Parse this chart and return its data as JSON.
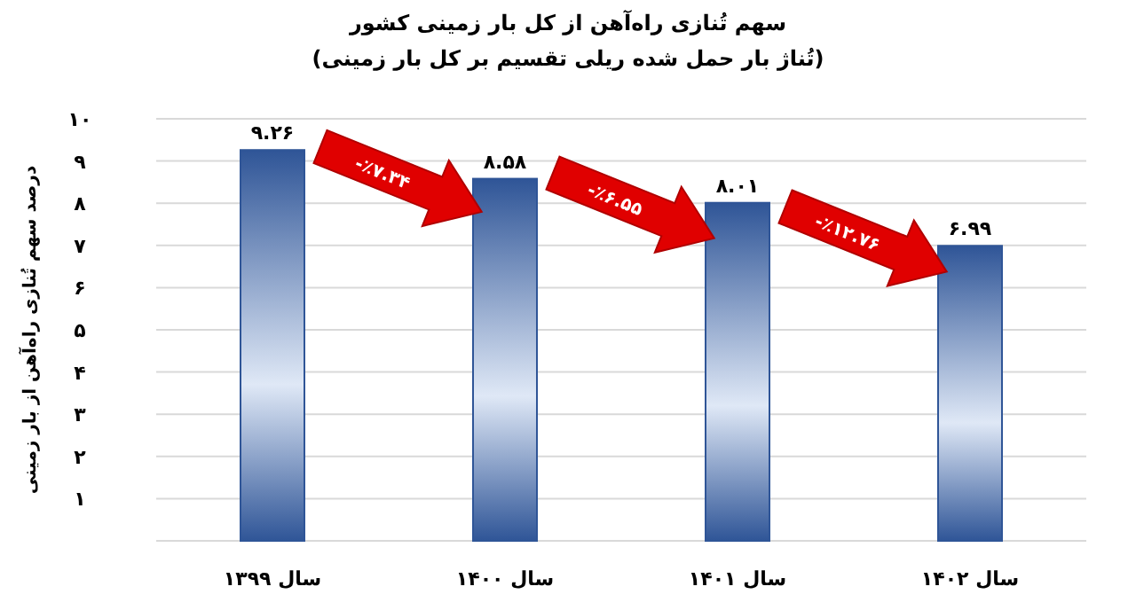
{
  "chart_data": {
    "type": "bar",
    "title": "سهم تُنازی راه‌آهن از کل بار زمینی کشور",
    "subtitle": "(تُناژ بار حمل شده ریلی تقسیم بر کل بار زمینی)",
    "ylabel": "درصد سهم تُنازی راه‌آهن از بار زمینی",
    "categories": [
      "سال ۱۳۹۹",
      "سال ۱۴۰۰",
      "سال ۱۴۰۱",
      "سال ۱۴۰۲"
    ],
    "values": [
      9.26,
      8.58,
      8.01,
      6.99
    ],
    "value_labels": [
      "۹.۲۶",
      "۸.۵۸",
      "۸.۰۱",
      "۶.۹۹"
    ],
    "color": "#2f5597",
    "ylim": [
      0,
      10
    ],
    "yticks": [
      {
        "value": 0,
        "label": null
      },
      {
        "value": 1,
        "label": "۱"
      },
      {
        "value": 2,
        "label": "۲"
      },
      {
        "value": 3,
        "label": "۳"
      },
      {
        "value": 4,
        "label": "۴"
      },
      {
        "value": 5,
        "label": "۵"
      },
      {
        "value": 6,
        "label": "۶"
      },
      {
        "value": 7,
        "label": "۷"
      },
      {
        "value": 8,
        "label": "۸"
      },
      {
        "value": 9,
        "label": "۹"
      },
      {
        "value": 10,
        "label": "۱۰"
      }
    ],
    "grid": "y",
    "annotations": [
      "-٪۷.۳۴",
      "-٪۶.۵۵",
      "-٪۱۲.۷۶"
    ]
  }
}
